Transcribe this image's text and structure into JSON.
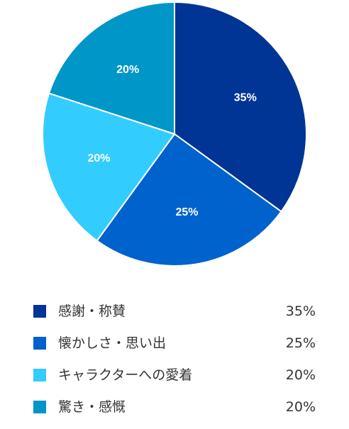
{
  "chart_data": {
    "type": "pie",
    "start_angle_deg": 0,
    "direction": "clockwise",
    "legend_placement": "bottom",
    "slices": [
      {
        "label": "感謝・称賛",
        "value": 35,
        "value_label": "35%",
        "color": "#003595"
      },
      {
        "label": "懐かしさ・思い出",
        "value": 25,
        "value_label": "25%",
        "color": "#0062cc"
      },
      {
        "label": "キャラクターへの愛着",
        "value": 20,
        "value_label": "20%",
        "color": "#33ccff"
      },
      {
        "label": "驚き・感慨",
        "value": 20,
        "value_label": "20%",
        "color": "#0096c8"
      }
    ]
  }
}
